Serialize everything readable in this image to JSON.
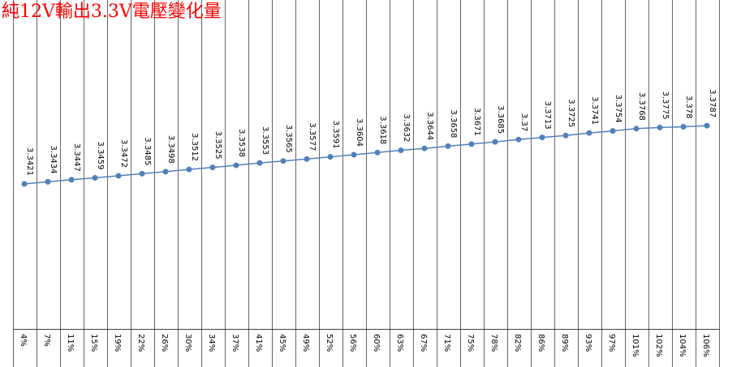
{
  "chart_data": {
    "type": "line",
    "title": "純12V輸出3.3V電壓變化量",
    "categories": [
      "4%",
      "7%",
      "11%",
      "15%",
      "19%",
      "22%",
      "26%",
      "30%",
      "34%",
      "37%",
      "41%",
      "45%",
      "49%",
      "52%",
      "56%",
      "60%",
      "63%",
      "67%",
      "71%",
      "75%",
      "78%",
      "82%",
      "86%",
      "89%",
      "93%",
      "97%",
      "101%",
      "102%",
      "104%",
      "106%"
    ],
    "series": [
      {
        "values": [
          3.3421,
          3.3434,
          3.3447,
          3.3459,
          3.3472,
          3.3485,
          3.3498,
          3.3512,
          3.3525,
          3.3538,
          3.3553,
          3.3565,
          3.3577,
          3.3591,
          3.3604,
          3.3618,
          3.3632,
          3.3644,
          3.3658,
          3.3671,
          3.3685,
          3.37,
          3.3713,
          3.3725,
          3.3741,
          3.3754,
          3.3768,
          3.3775,
          3.378,
          3.3787
        ],
        "labels": [
          "3.3421",
          "3.3434",
          "3.3447",
          "3.3459",
          "3.3472",
          "3.3485",
          "3.3498",
          "3.3512",
          "3.3525",
          "3.3538",
          "3.3553",
          "3.3565",
          "3.3577",
          "3.3591",
          "3.3604",
          "3.3618",
          "3.3632",
          "3.3644",
          "3.3658",
          "3.3671",
          "3.3685",
          "3.37",
          "3.3713",
          "3.3725",
          "3.3741",
          "3.3754",
          "3.3768",
          "3.3775",
          "3.378",
          "3.3787"
        ]
      }
    ],
    "xlabel": "",
    "ylabel": "",
    "ylim": [
      3.3,
      3.405
    ],
    "grid": "vertical",
    "legend": "none",
    "line_color": "#4f81bd",
    "grid_color": "#000000",
    "title_color": "#ff0000"
  }
}
